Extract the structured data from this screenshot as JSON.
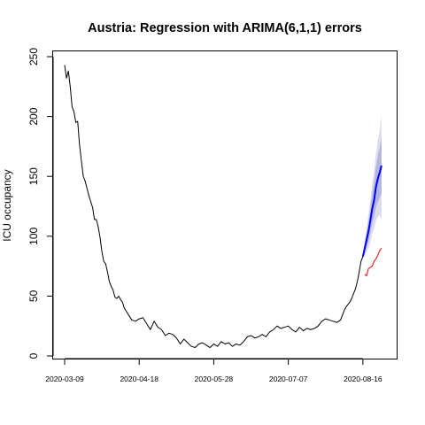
{
  "chart_data": {
    "type": "line",
    "title": "Austria: Regression with ARIMA(6,1,1) errors",
    "xlabel": "",
    "ylabel": "ICU occupancy",
    "x_ticks": [
      "2020-03-09",
      "2020-04-18",
      "2020-05-28",
      "2020-07-07",
      "2020-08-16"
    ],
    "y_ticks": [
      "0",
      "50",
      "100",
      "150",
      "200",
      "250"
    ],
    "xlim": [
      "2020-03-09",
      "2020-08-27"
    ],
    "ylim": [
      0,
      250
    ],
    "grid": false,
    "legend": "none",
    "series": [
      {
        "role": "observed",
        "color": "#000000",
        "points": [
          [
            "2020-03-09",
            243
          ],
          [
            "2020-03-10",
            232
          ],
          [
            "2020-03-11",
            238
          ],
          [
            "2020-03-12",
            225
          ],
          [
            "2020-03-13",
            208
          ],
          [
            "2020-03-14",
            204
          ],
          [
            "2020-03-15",
            195
          ],
          [
            "2020-03-16",
            196
          ],
          [
            "2020-03-17",
            176
          ],
          [
            "2020-03-18",
            163
          ],
          [
            "2020-03-19",
            150
          ],
          [
            "2020-03-20",
            146
          ],
          [
            "2020-03-21",
            140
          ],
          [
            "2020-03-22",
            134
          ],
          [
            "2020-03-23",
            129
          ],
          [
            "2020-03-24",
            124
          ],
          [
            "2020-03-25",
            114
          ],
          [
            "2020-03-26",
            114
          ],
          [
            "2020-03-27",
            108
          ],
          [
            "2020-03-28",
            99
          ],
          [
            "2020-03-29",
            87
          ],
          [
            "2020-03-30",
            79
          ],
          [
            "2020-03-31",
            77
          ],
          [
            "2020-04-01",
            70
          ],
          [
            "2020-04-02",
            62
          ],
          [
            "2020-04-03",
            58
          ],
          [
            "2020-04-04",
            55
          ],
          [
            "2020-04-05",
            49
          ],
          [
            "2020-04-06",
            48
          ],
          [
            "2020-04-07",
            50
          ],
          [
            "2020-04-08",
            47
          ],
          [
            "2020-04-09",
            45
          ],
          [
            "2020-04-10",
            40
          ],
          [
            "2020-04-12",
            35
          ],
          [
            "2020-04-14",
            30
          ],
          [
            "2020-04-16",
            29
          ],
          [
            "2020-04-18",
            31
          ],
          [
            "2020-04-20",
            32
          ],
          [
            "2020-04-22",
            27
          ],
          [
            "2020-04-24",
            22
          ],
          [
            "2020-04-26",
            29
          ],
          [
            "2020-04-28",
            24
          ],
          [
            "2020-04-30",
            22
          ],
          [
            "2020-05-02",
            17
          ],
          [
            "2020-05-04",
            19
          ],
          [
            "2020-05-06",
            18
          ],
          [
            "2020-05-08",
            15
          ],
          [
            "2020-05-10",
            10
          ],
          [
            "2020-05-12",
            14
          ],
          [
            "2020-05-14",
            11
          ],
          [
            "2020-05-16",
            8
          ],
          [
            "2020-05-18",
            7
          ],
          [
            "2020-05-20",
            10
          ],
          [
            "2020-05-22",
            11
          ],
          [
            "2020-05-24",
            9
          ],
          [
            "2020-05-26",
            7
          ],
          [
            "2020-05-28",
            10
          ],
          [
            "2020-05-30",
            8
          ],
          [
            "2020-06-01",
            12
          ],
          [
            "2020-06-03",
            10
          ],
          [
            "2020-06-05",
            11
          ],
          [
            "2020-06-07",
            8
          ],
          [
            "2020-06-09",
            10
          ],
          [
            "2020-06-11",
            9
          ],
          [
            "2020-06-13",
            12
          ],
          [
            "2020-06-15",
            16
          ],
          [
            "2020-06-17",
            17
          ],
          [
            "2020-06-19",
            15
          ],
          [
            "2020-06-21",
            16
          ],
          [
            "2020-06-23",
            18
          ],
          [
            "2020-06-25",
            16
          ],
          [
            "2020-06-27",
            20
          ],
          [
            "2020-06-29",
            22
          ],
          [
            "2020-07-01",
            25
          ],
          [
            "2020-07-03",
            23
          ],
          [
            "2020-07-05",
            24
          ],
          [
            "2020-07-07",
            25
          ],
          [
            "2020-07-09",
            22
          ],
          [
            "2020-07-11",
            20
          ],
          [
            "2020-07-13",
            24
          ],
          [
            "2020-07-15",
            21
          ],
          [
            "2020-07-17",
            23
          ],
          [
            "2020-07-19",
            22
          ],
          [
            "2020-07-21",
            23
          ],
          [
            "2020-07-23",
            25
          ],
          [
            "2020-07-25",
            29
          ],
          [
            "2020-07-27",
            31
          ],
          [
            "2020-07-29",
            30
          ],
          [
            "2020-07-31",
            29
          ],
          [
            "2020-08-02",
            28
          ],
          [
            "2020-08-04",
            30
          ],
          [
            "2020-08-05",
            34
          ],
          [
            "2020-08-06",
            38
          ],
          [
            "2020-08-07",
            41
          ],
          [
            "2020-08-08",
            43
          ],
          [
            "2020-08-09",
            45
          ],
          [
            "2020-08-10",
            48
          ],
          [
            "2020-08-11",
            52
          ],
          [
            "2020-08-12",
            56
          ],
          [
            "2020-08-13",
            62
          ],
          [
            "2020-08-14",
            70
          ],
          [
            "2020-08-15",
            79
          ],
          [
            "2020-08-16",
            83
          ]
        ]
      },
      {
        "role": "forecast",
        "color": "#0000ff",
        "points": [
          [
            "2020-08-16",
            83
          ],
          [
            "2020-08-17",
            90
          ],
          [
            "2020-08-18",
            97
          ],
          [
            "2020-08-19",
            104
          ],
          [
            "2020-08-20",
            113
          ],
          [
            "2020-08-21",
            123
          ],
          [
            "2020-08-22",
            130
          ],
          [
            "2020-08-23",
            141
          ],
          [
            "2020-08-24",
            148
          ],
          [
            "2020-08-25",
            153
          ],
          [
            "2020-08-26",
            159
          ]
        ]
      },
      {
        "role": "actual",
        "color": "#ff0000",
        "points": [
          [
            "2020-08-17",
            68
          ],
          [
            "2020-08-18",
            67
          ],
          [
            "2020-08-19",
            73
          ],
          [
            "2020-08-20",
            74
          ],
          [
            "2020-08-21",
            75
          ],
          [
            "2020-08-22",
            79
          ],
          [
            "2020-08-23",
            81
          ],
          [
            "2020-08-24",
            84
          ],
          [
            "2020-08-25",
            88
          ],
          [
            "2020-08-26",
            90
          ]
        ]
      }
    ],
    "intervals": [
      {
        "level": "80",
        "color": "#b3b6e0",
        "points": [
          [
            "2020-08-16",
            83,
            83
          ],
          [
            "2020-08-17",
            86,
            94
          ],
          [
            "2020-08-18",
            91,
            103
          ],
          [
            "2020-08-19",
            96,
            112
          ],
          [
            "2020-08-20",
            103,
            123
          ],
          [
            "2020-08-21",
            111,
            135
          ],
          [
            "2020-08-22",
            116,
            144
          ],
          [
            "2020-08-23",
            124,
            158
          ],
          [
            "2020-08-24",
            129,
            167
          ],
          [
            "2020-08-25",
            132,
            174
          ],
          [
            "2020-08-26",
            136,
            182
          ]
        ]
      },
      {
        "level": "95",
        "color": "#dcdcee",
        "points": [
          [
            "2020-08-16",
            83,
            83
          ],
          [
            "2020-08-17",
            83,
            97
          ],
          [
            "2020-08-18",
            87,
            107
          ],
          [
            "2020-08-19",
            90,
            118
          ],
          [
            "2020-08-20",
            95,
            131
          ],
          [
            "2020-08-21",
            102,
            144
          ],
          [
            "2020-08-22",
            106,
            154
          ],
          [
            "2020-08-23",
            113,
            169
          ],
          [
            "2020-08-24",
            116,
            180
          ],
          [
            "2020-08-25",
            118,
            188
          ],
          [
            "2020-08-26",
            114,
            202
          ]
        ]
      }
    ]
  }
}
